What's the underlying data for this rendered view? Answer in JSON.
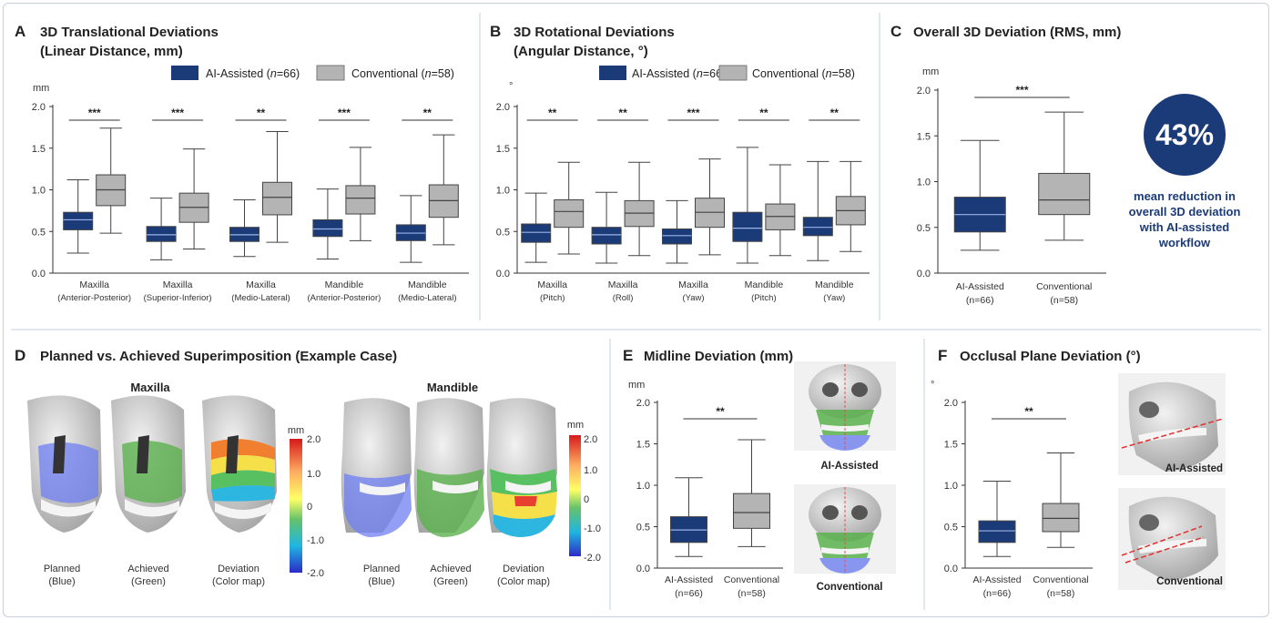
{
  "colors": {
    "ai": "#1b3a78",
    "conventional": "#b4b4b4",
    "accent": "#1b3a78",
    "frame": "#c7cfe0"
  },
  "panels": {
    "A": {
      "letter": "A",
      "title_1": "3D Translational Deviations",
      "title_2": "(Linear Distance, mm)",
      "unit": "mm"
    },
    "B": {
      "letter": "B",
      "title_1": "3D Rotational Deviations",
      "title_2": "(Angular Distance, °)",
      "unit": "°"
    },
    "C": {
      "letter": "C",
      "title": "Overall 3D Deviation (RMS, mm)",
      "unit": "mm",
      "callout_value": "43%",
      "callout_text": [
        "mean reduction in",
        "overall 3D deviation",
        "with AI-assisted",
        "workflow"
      ]
    },
    "D": {
      "letter": "D",
      "title": "Planned vs. Achieved Superimposition (Example Case)",
      "maxilla_heading": "Maxilla",
      "mandible_heading": "Mandible",
      "captions": [
        [
          "Planned",
          "(Blue)"
        ],
        [
          "Achieved",
          "(Green)"
        ],
        [
          "Deviation",
          "(Color map)"
        ]
      ],
      "colorbar_unit": "mm",
      "colorbar_ticks": [
        "2.0",
        "1.0",
        "0",
        "-1.0",
        "-2.0"
      ]
    },
    "E": {
      "letter": "E",
      "title": "Midline Deviation (mm)",
      "unit": "mm",
      "img_top": "AI-Assisted",
      "img_bottom": "Conventional"
    },
    "F": {
      "letter": "F",
      "title": "Occlusal Plane Deviation (°)",
      "unit": "°",
      "img_top": "AI-Assisted",
      "img_bottom": "Conventional"
    }
  },
  "legend": {
    "ai": "AI-Assisted (",
    "ai_n": "n",
    "ai_tail": "=66)",
    "conv": "Conventional (",
    "conv_n": "n",
    "conv_tail": "=58)"
  },
  "chart_data": [
    {
      "type": "box",
      "panel": "A",
      "ylim": [
        0,
        2
      ],
      "yticks": [
        "0.0",
        "0.5",
        "1.0",
        "1.5",
        "2.0"
      ],
      "ylabel": "mm",
      "categories": [
        [
          "Maxilla",
          "(Anterior-Posterior)"
        ],
        [
          "Maxilla",
          "(Superior-Inferior)"
        ],
        [
          "Maxilla",
          "(Medio-Lateral)"
        ],
        [
          "Mandible",
          "(Anterior-Posterior)"
        ],
        [
          "Mandible",
          "(Medio-Lateral)"
        ]
      ],
      "significance": [
        "***",
        "***",
        "**",
        "***",
        "**"
      ],
      "series": [
        {
          "name": "AI-Assisted (n=66)",
          "boxes": [
            [
              0.24,
              0.52,
              0.64,
              0.73,
              1.12
            ],
            [
              0.16,
              0.38,
              0.46,
              0.56,
              0.9
            ],
            [
              0.2,
              0.38,
              0.46,
              0.55,
              0.88
            ],
            [
              0.17,
              0.44,
              0.53,
              0.64,
              1.01
            ],
            [
              0.13,
              0.39,
              0.48,
              0.58,
              0.93
            ]
          ]
        },
        {
          "name": "Conventional (n=58)",
          "boxes": [
            [
              0.48,
              0.81,
              1.0,
              1.18,
              1.74
            ],
            [
              0.29,
              0.61,
              0.79,
              0.96,
              1.49
            ],
            [
              0.37,
              0.7,
              0.91,
              1.09,
              1.7
            ],
            [
              0.39,
              0.71,
              0.9,
              1.05,
              1.51
            ],
            [
              0.34,
              0.67,
              0.87,
              1.06,
              1.66
            ]
          ]
        }
      ]
    },
    {
      "type": "box",
      "panel": "B",
      "ylim": [
        0,
        2
      ],
      "yticks": [
        "0.0",
        "0.5",
        "1.0",
        "1.5",
        "2.0"
      ],
      "ylabel": "°",
      "categories": [
        [
          "Maxilla",
          "(Pitch)"
        ],
        [
          "Maxilla",
          "(Roll)"
        ],
        [
          "Maxilla",
          "(Yaw)"
        ],
        [
          "Mandible",
          "(Pitch)"
        ],
        [
          "Mandible",
          "(Yaw)"
        ]
      ],
      "significance": [
        "**",
        "**",
        "***",
        "**",
        "**"
      ],
      "series": [
        {
          "name": "AI-Assisted (n=66)",
          "boxes": [
            [
              0.13,
              0.37,
              0.49,
              0.59,
              0.96
            ],
            [
              0.12,
              0.35,
              0.46,
              0.55,
              0.97
            ],
            [
              0.12,
              0.35,
              0.45,
              0.53,
              0.87
            ],
            [
              0.12,
              0.38,
              0.54,
              0.73,
              1.51
            ],
            [
              0.15,
              0.45,
              0.55,
              0.67,
              1.34
            ]
          ]
        },
        {
          "name": "Conventional (n=58)",
          "boxes": [
            [
              0.23,
              0.55,
              0.74,
              0.88,
              1.33
            ],
            [
              0.21,
              0.56,
              0.72,
              0.87,
              1.33
            ],
            [
              0.22,
              0.55,
              0.73,
              0.9,
              1.37
            ],
            [
              0.21,
              0.52,
              0.68,
              0.83,
              1.3
            ],
            [
              0.26,
              0.58,
              0.75,
              0.92,
              1.34
            ]
          ]
        }
      ]
    },
    {
      "type": "box",
      "panel": "C",
      "ylim": [
        0,
        2
      ],
      "yticks": [
        "0.0",
        "0.5",
        "1.0",
        "1.5",
        "2.0"
      ],
      "ylabel": "mm",
      "categories": [
        [
          "AI-Assisted",
          "(n=66)"
        ],
        [
          "Conventional",
          "(n=58)"
        ]
      ],
      "significance": "***",
      "boxes": [
        [
          0.25,
          0.45,
          0.64,
          0.83,
          1.45
        ],
        [
          0.36,
          0.64,
          0.8,
          1.09,
          1.76
        ]
      ]
    },
    {
      "type": "box",
      "panel": "E",
      "ylim": [
        0,
        2
      ],
      "yticks": [
        "0.0",
        "0.5",
        "1.0",
        "1.5",
        "2.0"
      ],
      "ylabel": "mm",
      "categories": [
        [
          "AI-Assisted",
          "(n=66)"
        ],
        [
          "Conventional",
          "(n=58)"
        ]
      ],
      "significance": "**",
      "boxes": [
        [
          0.14,
          0.31,
          0.46,
          0.62,
          1.09
        ],
        [
          0.26,
          0.48,
          0.67,
          0.9,
          1.55
        ]
      ]
    },
    {
      "type": "box",
      "panel": "F",
      "ylim": [
        0,
        2
      ],
      "yticks": [
        "0.0",
        "0.5",
        "1.0",
        "1.5",
        "2.0"
      ],
      "ylabel": "°",
      "categories": [
        [
          "AI-Assisted",
          "(n=66)"
        ],
        [
          "Conventional",
          "(n=58)"
        ]
      ],
      "significance": "**",
      "boxes": [
        [
          0.14,
          0.31,
          0.45,
          0.57,
          1.05
        ],
        [
          0.25,
          0.44,
          0.6,
          0.78,
          1.39
        ]
      ]
    }
  ]
}
